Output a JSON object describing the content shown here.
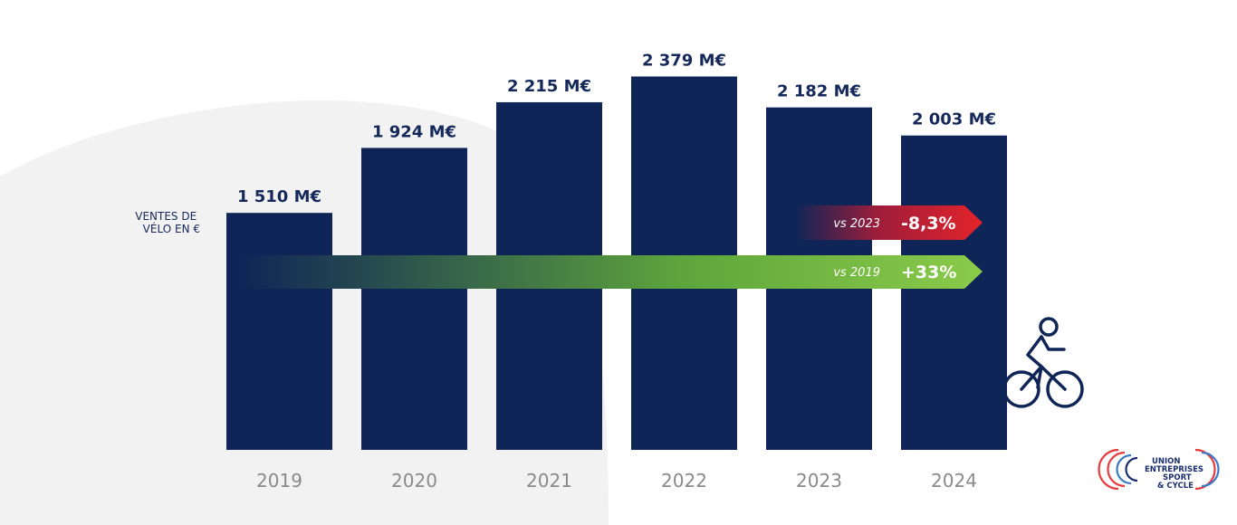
{
  "chart_data": {
    "type": "bar",
    "ylabel": [
      "VENTES DE",
      "VÉLO EN €"
    ],
    "categories": [
      "2019",
      "2020",
      "2021",
      "2022",
      "2023",
      "2024"
    ],
    "values": [
      1510,
      1924,
      2215,
      2379,
      2182,
      2003
    ],
    "value_labels": [
      "1 510 M€",
      "1 924 M€",
      "2 215 M€",
      "2 379 M€",
      "2 182 M€",
      "2 003 M€"
    ],
    "unit": "M€",
    "ylim": [
      0,
      2480
    ],
    "grid": false,
    "bar_color": "#0f2557",
    "annotations": [
      {
        "caption": "vs 2023",
        "value": "-8,3%",
        "color": "#e0222a"
      },
      {
        "caption": "vs 2019",
        "value": "+33%",
        "color": "#7cc242"
      }
    ]
  },
  "decor": {
    "cyclist": "cyclist-icon",
    "logo": {
      "name": "union-sport-cycle-logo",
      "lines": [
        "UNION",
        "ENTREPRISES",
        "SPORT",
        "& CYCLE"
      ]
    }
  }
}
